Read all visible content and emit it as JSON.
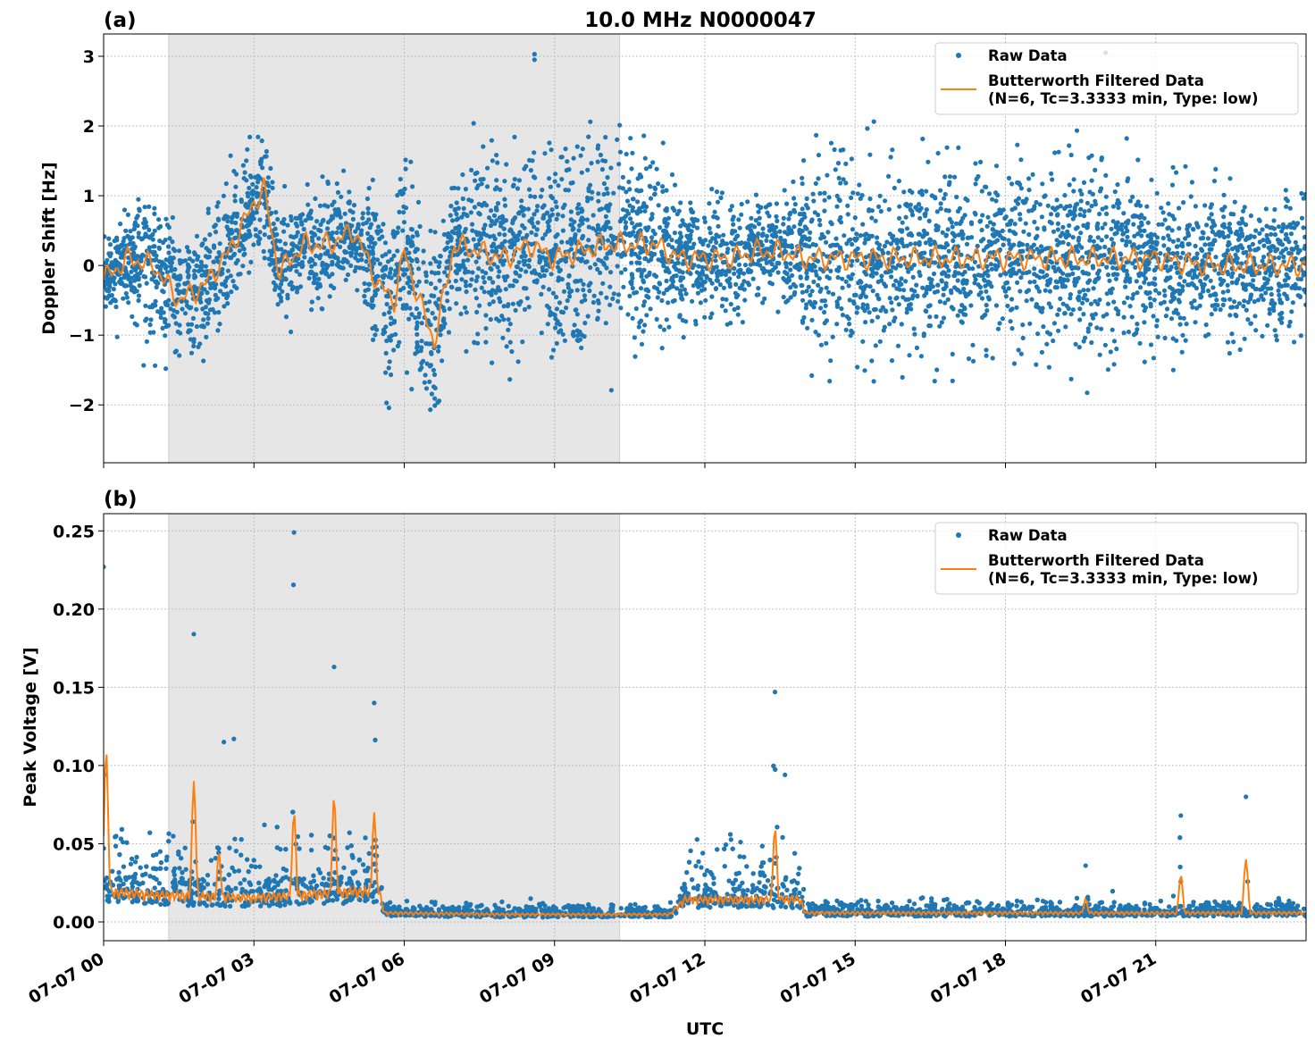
{
  "title": "10.0 MHz N0000047",
  "colors": {
    "raw": "#1f77b4",
    "filtered": "#ff7f0e",
    "shade": "#e6e6e6"
  },
  "legend": {
    "raw": "Raw Data",
    "filtered_line1": "Butterworth Filtered Data",
    "filtered_line2": "(N=6, Tc=3.3333 min, Type: low)",
    "placement": "top-right"
  },
  "xlabel": "UTC",
  "x_tick_labels": [
    "07-07 00",
    "07-07 03",
    "07-07 06",
    "07-07 09",
    "07-07 12",
    "07-07 15",
    "07-07 18",
    "07-07 21"
  ],
  "chart_data": [
    {
      "type": "scatter",
      "panel_label": "(a)",
      "ylabel": "Doppler Shift [Hz]",
      "x_unit": "hours UTC on 07-07",
      "xlim": [
        0,
        24
      ],
      "ylim": [
        -2.83,
        3.32
      ],
      "y_ticks": [
        -2,
        -1,
        0,
        1,
        2,
        3
      ],
      "y_tick_labels": [
        "−2",
        "−1",
        "0",
        "1",
        "2",
        "3"
      ],
      "grid": true,
      "shaded_interval_hours": [
        1.3,
        10.3
      ],
      "filtered": {
        "x": [
          0,
          0.5,
          1,
          1.5,
          2,
          2.5,
          3,
          3.2,
          3.5,
          4,
          4.5,
          5,
          5.5,
          5.8,
          6,
          6.3,
          6.6,
          7,
          7.5,
          8,
          8.5,
          9,
          9.5,
          10,
          10.5,
          11,
          11.5,
          12,
          12.5,
          13,
          13.5,
          14,
          15,
          16,
          17,
          18,
          19,
          20,
          21,
          22,
          23,
          24
        ],
        "y": [
          -0.2,
          0.1,
          0,
          -0.5,
          -0.3,
          0.2,
          0.9,
          1.1,
          -0.1,
          0.3,
          0.3,
          0.5,
          -0.3,
          -0.5,
          0.2,
          -0.5,
          -1.1,
          0.3,
          0.2,
          0.1,
          0.3,
          0.1,
          0.2,
          0.3,
          0.3,
          0.3,
          0.1,
          0.1,
          0.1,
          0.2,
          0.2,
          0.1,
          0.1,
          0.1,
          0.1,
          0.1,
          0.1,
          0.1,
          0.1,
          0,
          0,
          0
        ]
      },
      "raw_envelope": {
        "x": [
          0,
          1,
          2,
          3,
          4,
          5,
          6,
          7,
          8,
          9,
          10,
          11,
          11.7,
          12,
          13,
          13.9,
          14,
          15,
          16,
          17,
          18,
          19,
          20,
          21,
          22,
          23,
          24
        ],
        "min": [
          -0.7,
          -1.9,
          -1.4,
          -1.1,
          -0.9,
          -1.0,
          -2.5,
          -1.7,
          -1.8,
          -1.8,
          -2.0,
          -2.1,
          -0.8,
          -1.0,
          -0.8,
          -1.2,
          -1.7,
          -1.7,
          -1.6,
          -1.7,
          -1.8,
          -1.7,
          -1.9,
          -1.5,
          -1.5,
          -1.5,
          -1.6
        ],
        "max": [
          0.6,
          1.1,
          1.2,
          1.9,
          1.2,
          1.4,
          1.5,
          2.0,
          2.1,
          2.3,
          2.2,
          1.9,
          1.3,
          1.4,
          1.2,
          1.2,
          1.8,
          2.1,
          2.0,
          2.0,
          1.9,
          2.2,
          2.2,
          1.7,
          1.4,
          1.3,
          1.3
        ]
      },
      "raw_outliers": {
        "x": [
          8.6,
          8.6,
          20.0
        ],
        "y": [
          3.03,
          2.95,
          3.05
        ]
      }
    },
    {
      "type": "scatter",
      "panel_label": "(b)",
      "ylabel": "Peak Voltage [V]",
      "x_unit": "hours UTC on 07-07",
      "xlim": [
        0,
        24
      ],
      "ylim": [
        -0.012,
        0.261
      ],
      "y_ticks": [
        0,
        0.05,
        0.1,
        0.15,
        0.2,
        0.25
      ],
      "y_tick_labels": [
        "0.00",
        "0.05",
        "0.10",
        "0.15",
        "0.20",
        "0.25"
      ],
      "grid": true,
      "shaded_interval_hours": [
        1.3,
        10.3
      ],
      "baseline": {
        "x": [
          0,
          1,
          2,
          3,
          4,
          5,
          5.5,
          5.6,
          8,
          11.3,
          11.6,
          12.5,
          13.9,
          14.0,
          16,
          24
        ],
        "y": [
          0.02,
          0.018,
          0.017,
          0.016,
          0.018,
          0.02,
          0.02,
          0.006,
          0.005,
          0.005,
          0.015,
          0.015,
          0.015,
          0.006,
          0.006,
          0.006
        ]
      },
      "filtered_peaks": {
        "x": [
          0.05,
          1.8,
          2.3,
          3.8,
          4.6,
          5.4,
          13.4,
          19.6,
          21.5,
          22.8
        ],
        "y": [
          0.11,
          0.09,
          0.045,
          0.07,
          0.08,
          0.07,
          0.06,
          0.015,
          0.03,
          0.04
        ]
      },
      "raw_peaks": {
        "x": [
          0.0,
          1.8,
          2.4,
          2.6,
          3.8,
          4.6,
          5.4,
          13.4,
          13.6,
          19.6,
          21.5,
          22.8
        ],
        "y": [
          0.227,
          0.184,
          0.115,
          0.117,
          0.249,
          0.163,
          0.14,
          0.147,
          0.094,
          0.036,
          0.068,
          0.08
        ]
      }
    }
  ]
}
